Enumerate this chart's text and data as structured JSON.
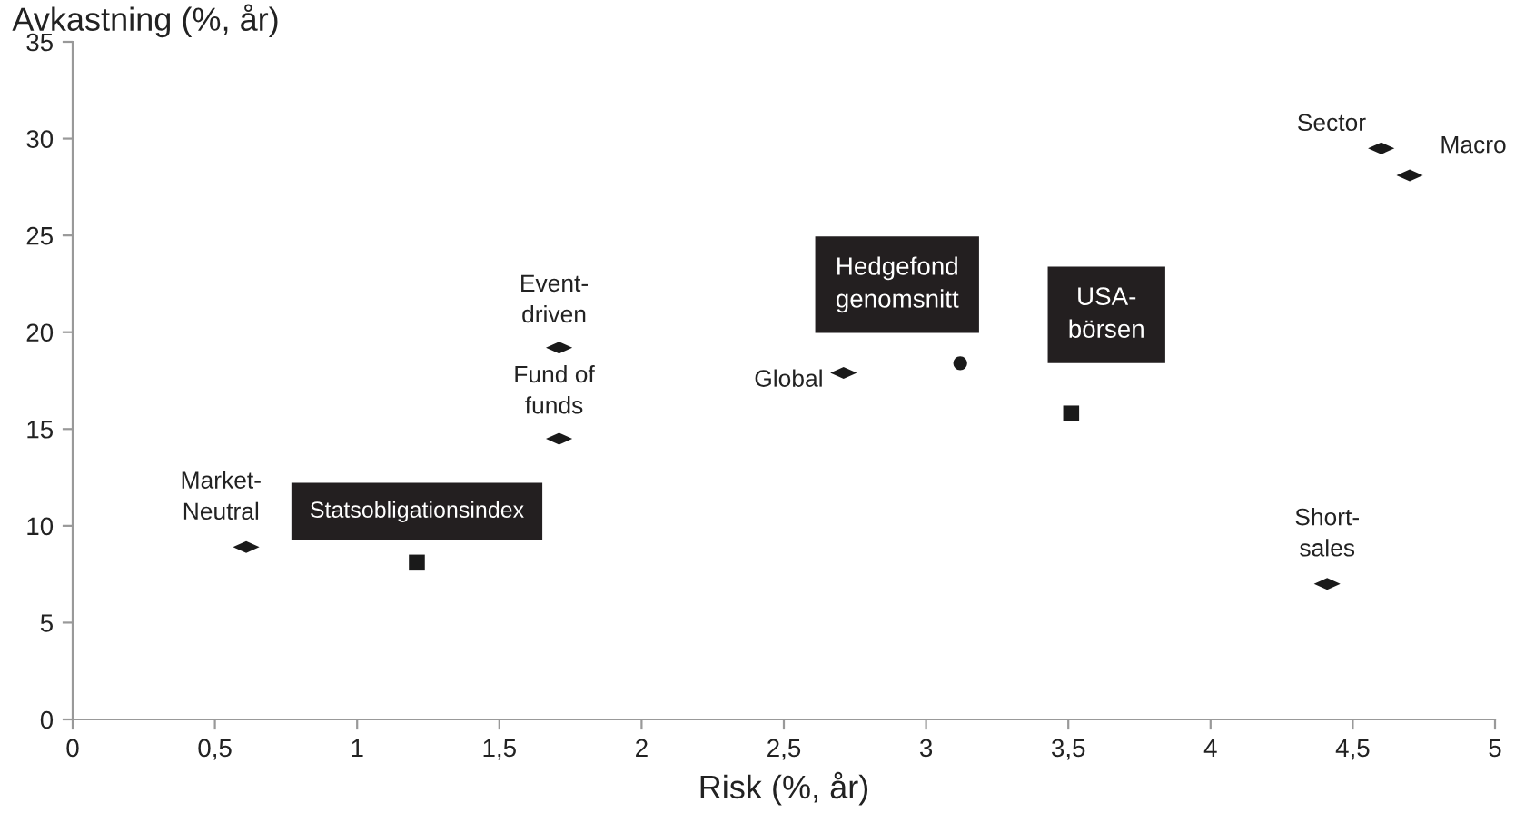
{
  "chart_data": {
    "type": "scatter",
    "xlabel": "Risk (%, år)",
    "ylabel": "Avkastning (%, år)",
    "series": [
      {
        "color": "#1a1a1a",
        "marker": "diamond",
        "x": [
          0.61,
          1.71,
          1.71,
          2.71,
          4.6,
          4.7,
          4.41
        ],
        "values": [
          8.9,
          19.2,
          14.5,
          17.9,
          29.5,
          28.1,
          7.0
        ]
      },
      {
        "color": "#1a1a1a",
        "marker": "circle",
        "x": [
          3.12
        ],
        "values": [
          18.4
        ]
      },
      {
        "color": "#1a1a1a",
        "marker": "square",
        "x": [
          1.21,
          3.51
        ],
        "values": [
          8.1,
          15.8
        ]
      }
    ],
    "annotations": [
      {
        "text": "Market-\nNeutral",
        "x": 0.61,
        "y": 8.9
      },
      {
        "text": "Event-\ndriven",
        "x": 1.71,
        "y": 19.2
      },
      {
        "text": "Fund of\nfunds",
        "x": 1.71,
        "y": 14.5
      },
      {
        "text": "Global",
        "x": 2.71,
        "y": 17.9
      },
      {
        "text": "Sector",
        "x": 4.6,
        "y": 29.5
      },
      {
        "text": "Macro",
        "x": 4.7,
        "y": 28.1
      },
      {
        "text": "Short-\nsales",
        "x": 4.41,
        "y": 7.0
      },
      {
        "text": "Statsobligationsindex",
        "x": 1.21,
        "y": 8.1
      },
      {
        "text": "Hedgefond\ngenomsnitt",
        "x": 3.12,
        "y": 18.4
      },
      {
        "text": "USA-\nbörsen",
        "x": 3.51,
        "y": 15.8
      }
    ],
    "xlim": [
      0,
      5
    ],
    "xticks": [
      {
        "value": 0,
        "label": "0"
      },
      {
        "value": 0.5,
        "label": "0,5"
      },
      {
        "value": 1,
        "label": "1"
      },
      {
        "value": 1.5,
        "label": "1,5"
      },
      {
        "value": 2,
        "label": "2"
      },
      {
        "value": 2.5,
        "label": "2,5"
      },
      {
        "value": 3,
        "label": "3"
      },
      {
        "value": 3.5,
        "label": "3,5"
      },
      {
        "value": 4,
        "label": "4"
      },
      {
        "value": 4.5,
        "label": "4,5"
      },
      {
        "value": 5,
        "label": "5"
      }
    ],
    "ylim": [
      0,
      35
    ],
    "yticks": [
      0,
      5,
      10,
      15,
      20,
      25,
      30,
      35
    ],
    "grid": false
  }
}
